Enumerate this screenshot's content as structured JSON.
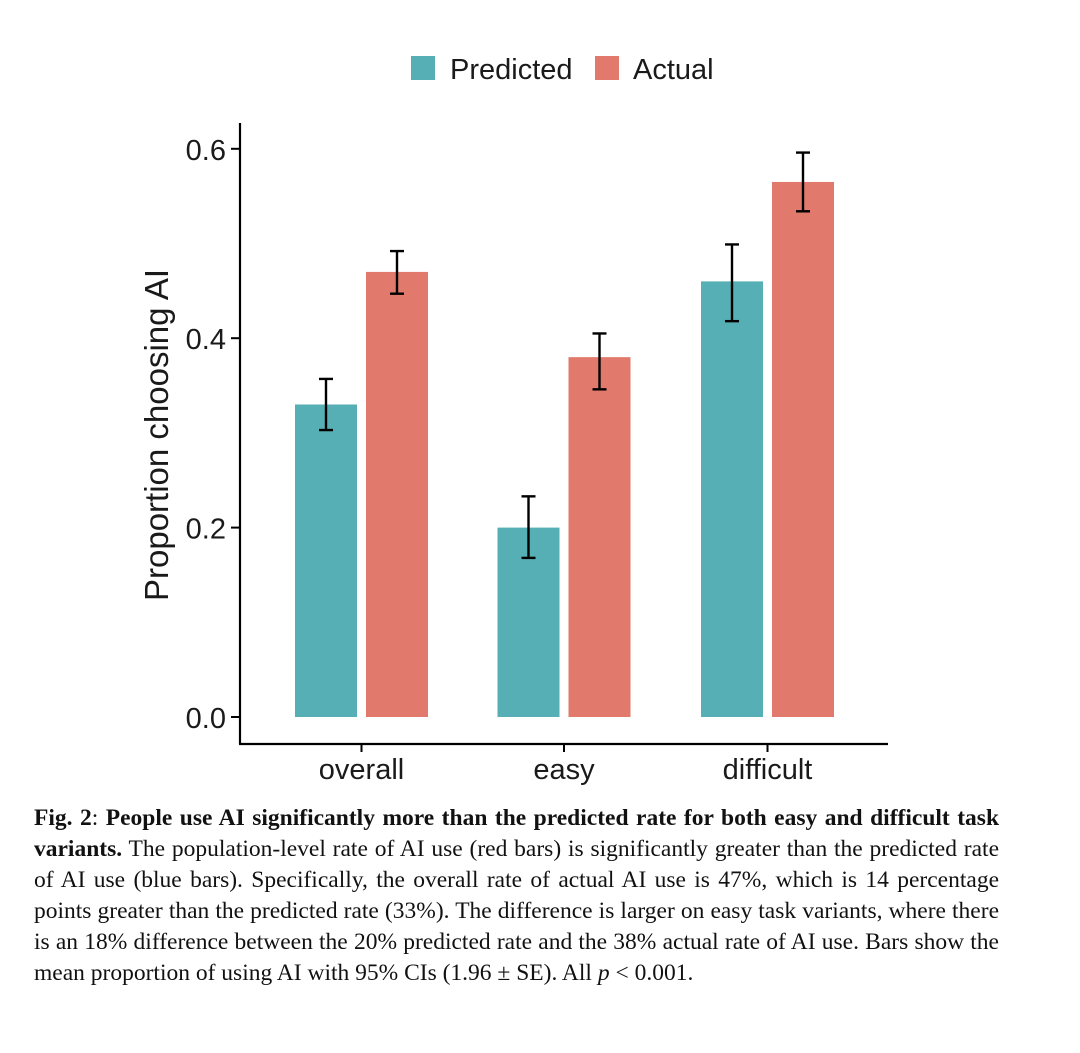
{
  "chart_data": {
    "type": "bar",
    "categories": [
      "overall",
      "easy",
      "difficult"
    ],
    "series": [
      {
        "name": "Predicted",
        "color": "#56AFB4",
        "values": [
          0.33,
          0.2,
          0.46
        ],
        "ci_low": [
          0.303,
          0.168,
          0.418
        ],
        "ci_high": [
          0.357,
          0.233,
          0.499
        ]
      },
      {
        "name": "Actual",
        "color": "#E1796C",
        "values": [
          0.47,
          0.38,
          0.565
        ],
        "ci_low": [
          0.447,
          0.346,
          0.534
        ],
        "ci_high": [
          0.492,
          0.405,
          0.596
        ]
      }
    ],
    "ylabel": "Proportion choosing AI",
    "ylim": [
      0,
      0.625
    ],
    "yticks": [
      "0.0",
      "0.2",
      "0.4",
      "0.6"
    ],
    "legend_position": "top",
    "grid": false
  },
  "caption": {
    "label": "Fig. 2",
    "sep": ": ",
    "bold_title": "People use AI significantly more than the predicted rate for both easy and difficult task variants.",
    "body": " The population-level rate of AI use (red bars) is significantly greater than the predicted rate of AI use (blue bars). Specifically, the overall rate of actual AI use is 47%, which is 14 percentage points greater than the predicted rate (33%). The difference is larger on easy task variants, where there is an 18% difference between the 20% predicted rate and the 38% actual rate of AI use. Bars show the mean proportion of using AI with 95% CIs (1.96 ± SE). All ",
    "p_symbol": "p",
    "tail": " < 0.001."
  }
}
